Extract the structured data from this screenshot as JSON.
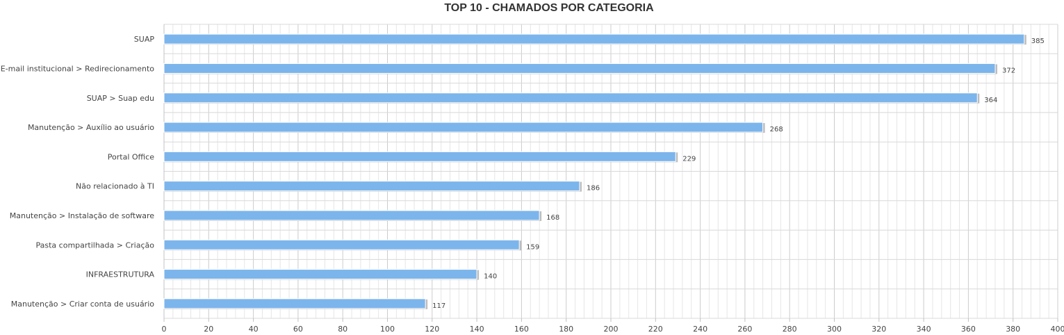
{
  "chart_data": {
    "type": "bar",
    "orientation": "horizontal",
    "title": "TOP 10 - CHAMADOS POR CATEGORIA",
    "categories": [
      "SUAP",
      "E-mail institucional > Redirecionamento",
      "SUAP > Suap edu",
      "Manutenção > Auxílio ao usuário",
      "Portal Office",
      "Não relacionado à TI",
      "Manutenção > Instalação de software",
      "Pasta compartilhada > Criação",
      "INFRAESTRUTURA",
      "Manutenção > Criar conta de usuário"
    ],
    "values": [
      385,
      372,
      364,
      268,
      229,
      186,
      168,
      159,
      140,
      117
    ],
    "xlim": [
      0,
      400
    ],
    "xticks": [
      "0",
      "20",
      "40",
      "60",
      "80",
      "100",
      "120",
      "140",
      "160",
      "180",
      "200",
      "220",
      "240",
      "260",
      "280",
      "300",
      "320",
      "340",
      "360",
      "380",
      "400"
    ],
    "grid": true,
    "bar_color": "#7cb5ec",
    "data_labels": true,
    "legend": "none"
  }
}
